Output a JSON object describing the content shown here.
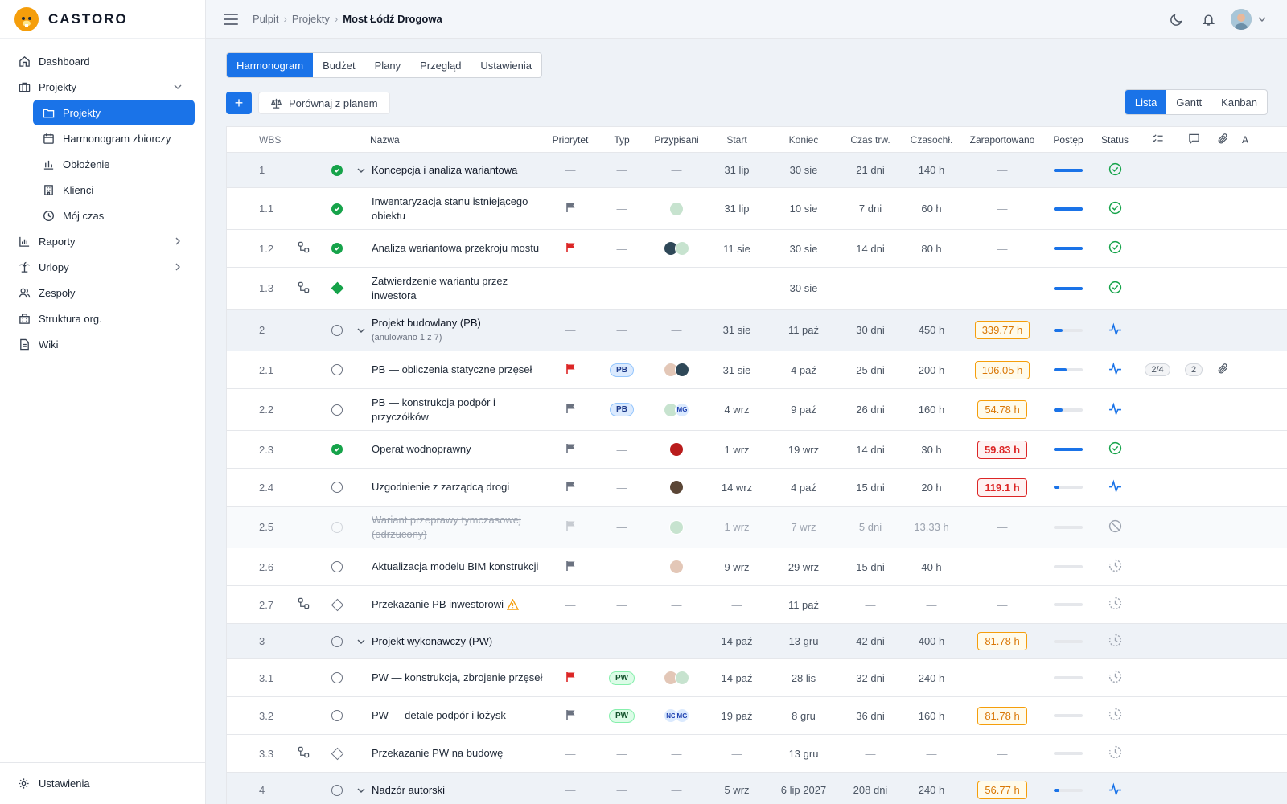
{
  "app": {
    "name": "CASTORO"
  },
  "sidebar": {
    "items": [
      {
        "label": "Dashboard",
        "icon": "home-icon"
      },
      {
        "label": "Projekty",
        "icon": "briefcase-icon"
      },
      {
        "label": "Raporty",
        "icon": "bar-chart-icon"
      },
      {
        "label": "Urlopy",
        "icon": "palm-tree-icon"
      },
      {
        "label": "Zespoły",
        "icon": "users-icon"
      },
      {
        "label": "Struktura org.",
        "icon": "building-icon"
      },
      {
        "label": "Wiki",
        "icon": "document-icon"
      }
    ],
    "sub_items": [
      {
        "label": "Projekty",
        "icon": "folder-icon",
        "active": true
      },
      {
        "label": "Harmonogram zbiorczy",
        "icon": "calendar-icon"
      },
      {
        "label": "Obłożenie",
        "icon": "chart-icon"
      },
      {
        "label": "Klienci",
        "icon": "office-icon"
      },
      {
        "label": "Mój czas",
        "icon": "clock-icon"
      }
    ],
    "settings": "Ustawienia"
  },
  "breadcrumb": {
    "items": [
      "Pulpit",
      "Projekty"
    ],
    "current": "Most Łódź Drogowa"
  },
  "tabs": [
    "Harmonogram",
    "Budżet",
    "Plany",
    "Przegląd",
    "Ustawienia"
  ],
  "toolbar": {
    "add": "+",
    "compare": "Porównaj z planem"
  },
  "views": [
    "Lista",
    "Gantt",
    "Kanban"
  ],
  "columns": {
    "wbs": "WBS",
    "name": "Nazwa",
    "priority": "Priorytet",
    "type": "Typ",
    "assignees": "Przypisani",
    "start": "Start",
    "end": "Koniec",
    "duration": "Czas trw.",
    "effort": "Czasochł.",
    "reported": "Zaraportowano",
    "progress": "Postęp",
    "status": "Status",
    "extra": "A"
  },
  "rows": [
    {
      "wbs": "1",
      "kind": "group",
      "check": "done",
      "name": "Koncepcja i analiza wariantowa",
      "prio": "—",
      "type": "—",
      "asg": "—",
      "start": "31 lip",
      "end": "30 sie",
      "dur": "21 dni",
      "eff": "140 h",
      "rep": "—",
      "progress": 1.0,
      "status": "done"
    },
    {
      "wbs": "1.1",
      "kind": "task",
      "check": "done",
      "name": "Inwentaryzacja stanu istniejącego obiektu",
      "prio": "gray",
      "type": "—",
      "asg": [
        "img1"
      ],
      "start": "31 lip",
      "end": "10 sie",
      "dur": "7 dni",
      "eff": "60 h",
      "rep": "—",
      "progress": 1.0,
      "status": "done"
    },
    {
      "wbs": "1.2",
      "kind": "task",
      "dep": true,
      "check": "done",
      "name": "Analiza wariantowa przekroju mostu",
      "prio": "red",
      "type": "—",
      "asg": [
        "img2",
        "img1"
      ],
      "start": "11 sie",
      "end": "30 sie",
      "dur": "14 dni",
      "eff": "80 h",
      "rep": "—",
      "progress": 1.0,
      "status": "done"
    },
    {
      "wbs": "1.3",
      "kind": "task",
      "dep": true,
      "check": "milestone-done",
      "name": "Zatwierdzenie wariantu przez inwestora",
      "prio": "—",
      "type": "—",
      "asg": "—",
      "start": "—",
      "end": "30 sie",
      "dur": "—",
      "eff": "—",
      "rep": "—",
      "progress": 1.0,
      "status": "done"
    },
    {
      "wbs": "2",
      "kind": "group",
      "check": "open",
      "name": "Projekt budowlany (PB)",
      "sub": "(anulowano 1 z 7)",
      "prio": "—",
      "type": "—",
      "asg": "—",
      "start": "31 sie",
      "end": "11 paź",
      "dur": "30 dni",
      "eff": "450 h",
      "rep": "339.77 h",
      "rep_color": "orange",
      "progress": 0.3,
      "status": "active"
    },
    {
      "wbs": "2.1",
      "kind": "task",
      "check": "open",
      "name": "PB — obliczenia statyczne przęseł",
      "prio": "red",
      "type": "PB",
      "asg": [
        "img3",
        "img2"
      ],
      "start": "31 sie",
      "end": "4 paź",
      "dur": "25 dni",
      "eff": "200 h",
      "rep": "106.05 h",
      "rep_color": "orange",
      "progress": 0.45,
      "status": "active",
      "checklist": "2/4",
      "comments": "2",
      "attach": true
    },
    {
      "wbs": "2.2",
      "kind": "task",
      "check": "open",
      "name": "PB — konstrukcja podpór i przyczółków",
      "prio": "gray",
      "type": "PB",
      "asg": [
        "img1",
        "MG"
      ],
      "start": "4 wrz",
      "end": "9 paź",
      "dur": "26 dni",
      "eff": "160 h",
      "rep": "54.78 h",
      "rep_color": "orange",
      "progress": 0.3,
      "status": "active"
    },
    {
      "wbs": "2.3",
      "kind": "task",
      "check": "done",
      "name": "Operat wodnoprawny",
      "prio": "gray",
      "type": "—",
      "asg": [
        "img5"
      ],
      "start": "1 wrz",
      "end": "19 wrz",
      "dur": "14 dni",
      "eff": "30 h",
      "rep": "59.83 h",
      "rep_color": "red",
      "progress": 1.0,
      "status": "done"
    },
    {
      "wbs": "2.4",
      "kind": "task",
      "check": "open",
      "name": "Uzgodnienie z zarządcą drogi",
      "prio": "gray",
      "type": "—",
      "asg": [
        "img4"
      ],
      "start": "14 wrz",
      "end": "4 paź",
      "dur": "15 dni",
      "eff": "20 h",
      "rep": "119.1 h",
      "rep_color": "red",
      "progress": 0.2,
      "status": "active"
    },
    {
      "wbs": "2.5",
      "kind": "cancelled",
      "check": "faded",
      "name": "Wariant przeprawy tymczasowej (odrzucony)",
      "prio": "faded",
      "type": "—",
      "asg": [
        "img1"
      ],
      "start": "1 wrz",
      "end": "7 wrz",
      "dur": "5 dni",
      "eff": "13.33 h",
      "rep": "—",
      "progress": 0.0,
      "status": "cancelled"
    },
    {
      "wbs": "2.6",
      "kind": "task",
      "check": "open",
      "name": "Aktualizacja modelu BIM konstrukcji",
      "prio": "gray",
      "type": "—",
      "asg": [
        "img3"
      ],
      "start": "9 wrz",
      "end": "29 wrz",
      "dur": "15 dni",
      "eff": "40 h",
      "rep": "—",
      "progress": 0.0,
      "status": "pending"
    },
    {
      "wbs": "2.7",
      "kind": "task",
      "dep": true,
      "check": "milestone",
      "name": "Przekazanie PB inwestorowi",
      "warn": true,
      "prio": "—",
      "type": "—",
      "asg": "—",
      "start": "—",
      "end": "11 paź",
      "dur": "—",
      "eff": "—",
      "rep": "—",
      "progress": 0.0,
      "status": "pending"
    },
    {
      "wbs": "3",
      "kind": "group",
      "check": "open",
      "name": "Projekt wykonawczy (PW)",
      "prio": "—",
      "type": "—",
      "asg": "—",
      "start": "14 paź",
      "end": "13 gru",
      "dur": "42 dni",
      "eff": "400 h",
      "rep": "81.78 h",
      "rep_color": "orange",
      "progress": 0.0,
      "status": "pending"
    },
    {
      "wbs": "3.1",
      "kind": "task",
      "check": "open",
      "name": "PW — konstrukcja, zbrojenie przęseł",
      "prio": "red",
      "type": "PW",
      "asg": [
        "img3",
        "img1"
      ],
      "start": "14 paź",
      "end": "28 lis",
      "dur": "32 dni",
      "eff": "240 h",
      "rep": "—",
      "progress": 0.0,
      "status": "pending"
    },
    {
      "wbs": "3.2",
      "kind": "task",
      "check": "open",
      "name": "PW — detale podpór i łożysk",
      "prio": "gray",
      "type": "PW",
      "asg": [
        "NC",
        "MG"
      ],
      "start": "19 paź",
      "end": "8 gru",
      "dur": "36 dni",
      "eff": "160 h",
      "rep": "81.78 h",
      "rep_color": "orange",
      "progress": 0.0,
      "status": "pending"
    },
    {
      "wbs": "3.3",
      "kind": "task",
      "dep": true,
      "check": "milestone",
      "name": "Przekazanie PW na budowę",
      "prio": "—",
      "type": "—",
      "asg": "—",
      "start": "—",
      "end": "13 gru",
      "dur": "—",
      "eff": "—",
      "rep": "—",
      "progress": 0.0,
      "status": "pending"
    },
    {
      "wbs": "4",
      "kind": "group",
      "check": "open",
      "name": "Nadzór autorski",
      "prio": "—",
      "type": "—",
      "asg": "—",
      "start": "5 wrz",
      "end": "6 lip 2027",
      "dur": "208 dni",
      "eff": "240 h",
      "rep": "56.77 h",
      "rep_color": "orange",
      "progress": 0.2,
      "status": "active"
    }
  ]
}
